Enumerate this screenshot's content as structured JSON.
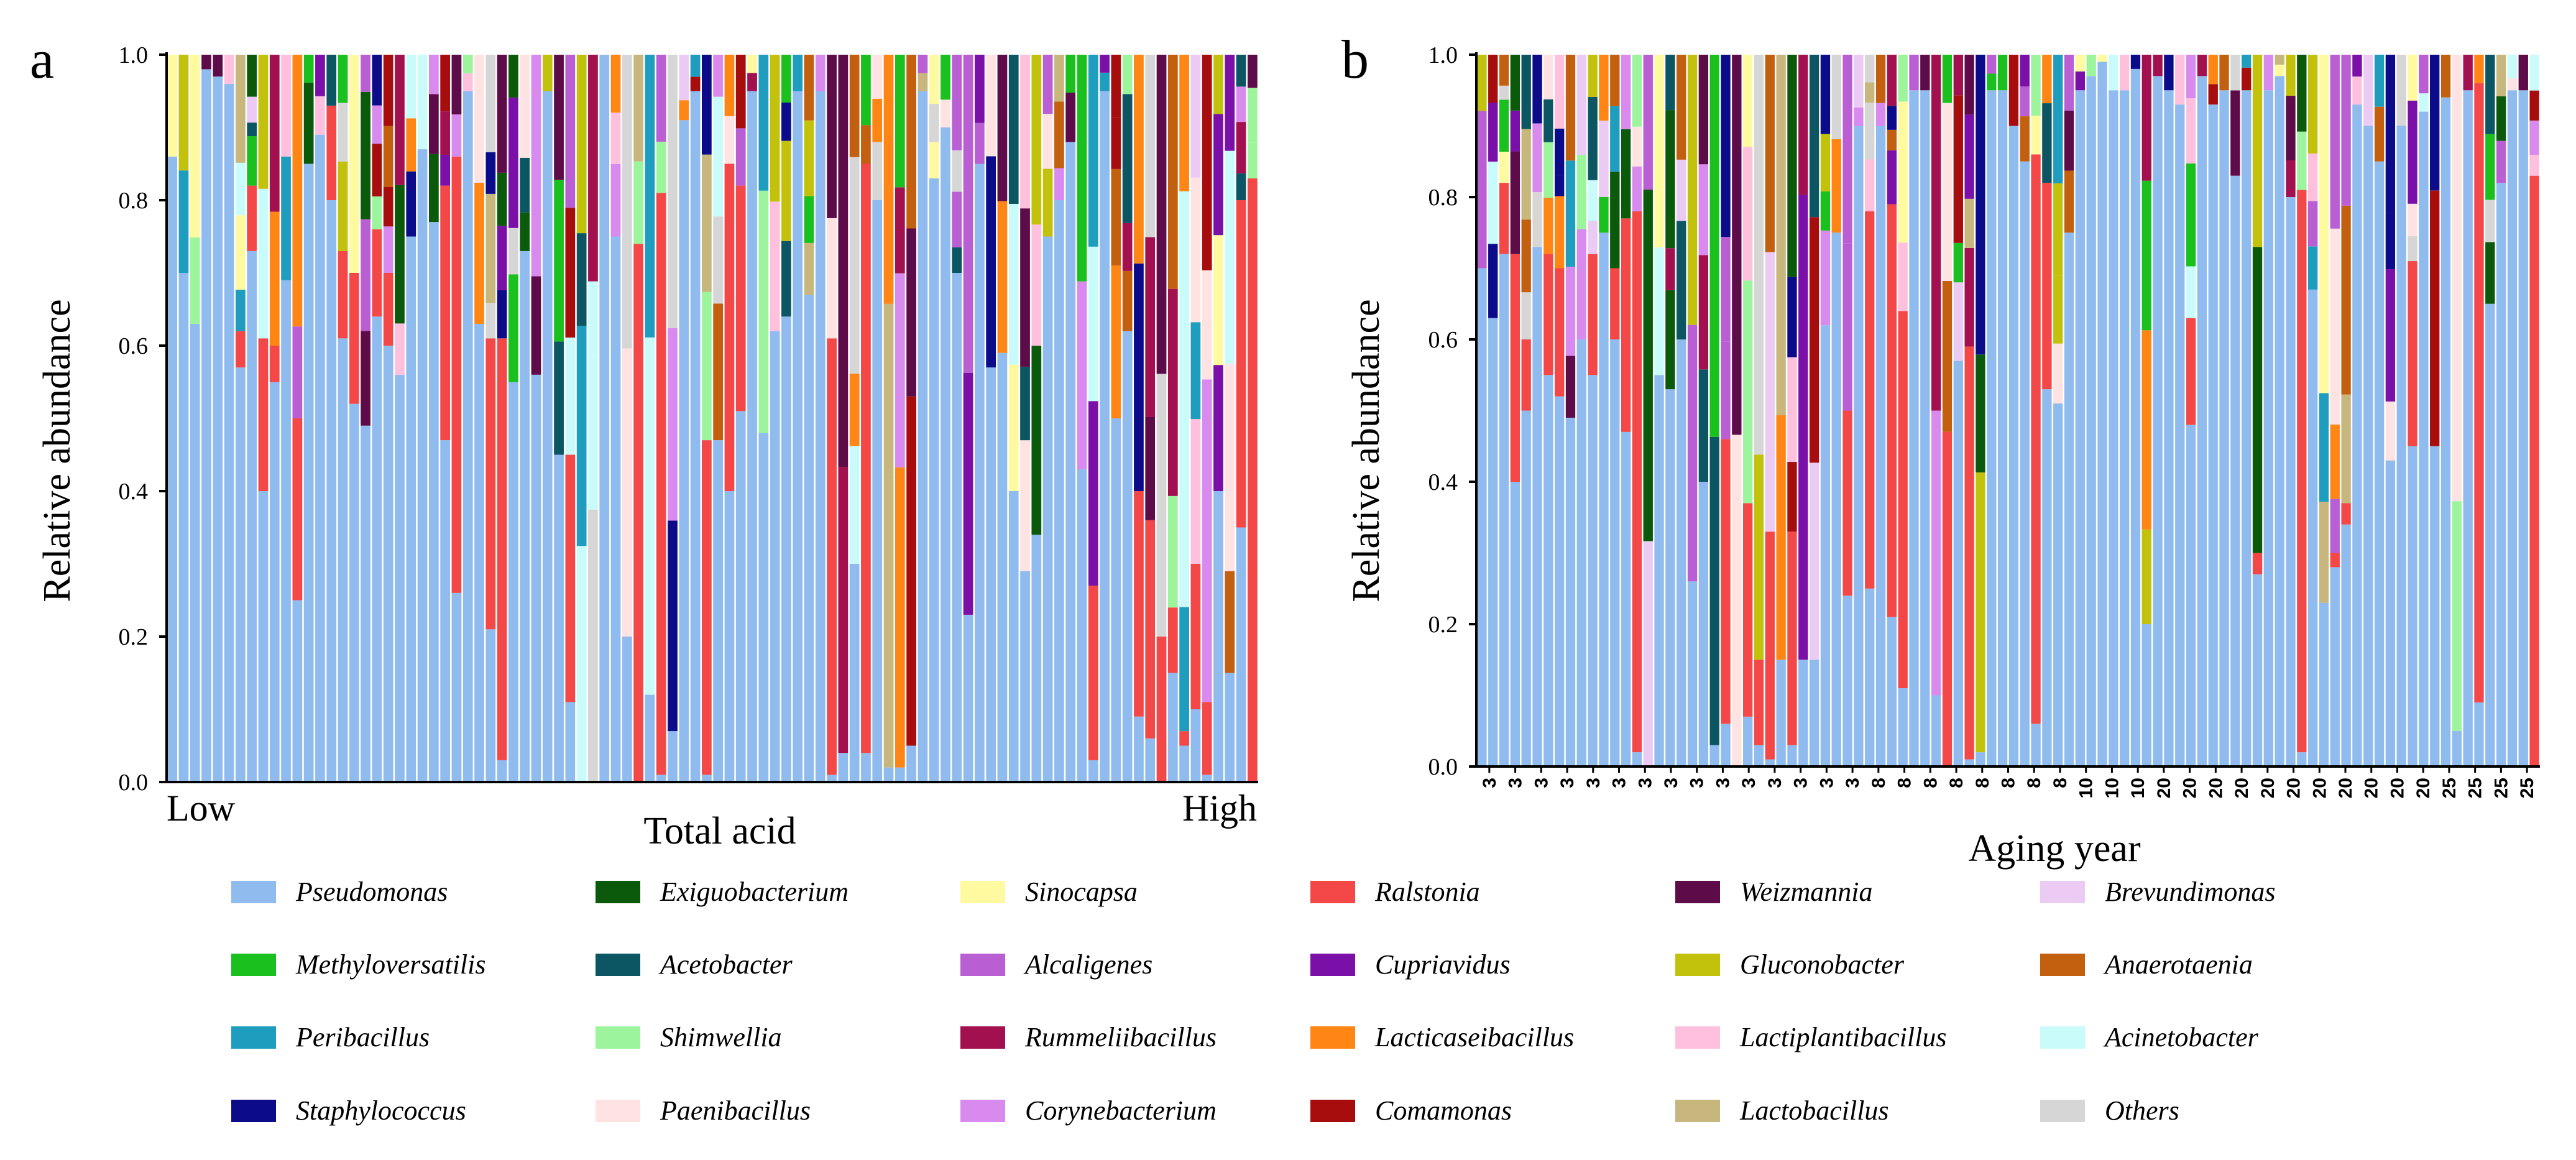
{
  "figure": {
    "panel_labels": [
      "a",
      "b"
    ]
  },
  "chart_data": [
    {
      "panel": "a",
      "type": "bar",
      "stacked": true,
      "xlabel": "Total acid",
      "ylabel": "Relative abundance",
      "x_end_labels": [
        "Low",
        "High"
      ],
      "n_samples": 96,
      "ylim": [
        0,
        1
      ],
      "y_ticks": [
        0.0,
        0.2,
        0.4,
        0.6,
        0.8,
        1.0
      ],
      "grid": false,
      "note": "Stacked composition per sample; bottom segment value is Pseudomonas share, second segment is Ralstonia share; remaining segments grouped into other genera.",
      "pseudomonas": [
        0.86,
        0.7,
        0.63,
        0.98,
        0.97,
        0.96,
        0.57,
        0.73,
        0.4,
        0.55,
        0.69,
        0.25,
        0.85,
        0.89,
        0.8,
        0.61,
        0.52,
        0.49,
        0.64,
        0.6,
        0.56,
        0.75,
        0.87,
        0.77,
        0.47,
        0.26,
        0.95,
        0.63,
        0.21,
        0.03,
        0.55,
        0.73,
        0.56,
        0.95,
        0.45,
        0.11,
        0.0,
        0.0,
        1.0,
        0.75,
        0.2,
        0.0,
        0.12,
        0.01,
        0.07,
        0.91,
        0.95,
        0.01,
        0.47,
        0.4,
        0.51,
        0.95,
        0.48,
        0.62,
        0.64,
        0.95,
        0.67,
        0.95,
        0.01,
        0.04,
        0.3,
        0.04,
        0.8,
        0.02,
        0.02,
        0.05,
        0.95,
        0.83,
        0.9,
        0.7,
        0.23,
        0.85,
        0.57,
        0.59,
        0.4,
        0.29,
        0.34,
        0.75,
        0.8,
        0.88,
        0.43,
        0.03,
        0.95,
        0.5,
        0.62,
        0.09,
        0.06,
        0.0,
        0.15,
        0.05,
        0.1,
        0.01,
        0.4,
        0.15,
        0.35,
        0.0
      ],
      "ralstonia": [
        0.0,
        0.0,
        0.0,
        0.0,
        0.0,
        0.0,
        0.05,
        0.09,
        0.21,
        0.05,
        0.0,
        0.25,
        0.0,
        0.0,
        0.13,
        0.12,
        0.18,
        0.0,
        0.12,
        0.1,
        0.0,
        0.0,
        0.0,
        0.0,
        0.35,
        0.6,
        0.0,
        0.0,
        0.4,
        0.58,
        0.0,
        0.0,
        0.0,
        0.0,
        0.0,
        0.34,
        0.0,
        0.0,
        0.0,
        0.0,
        0.0,
        0.74,
        0.0,
        0.8,
        0.0,
        0.0,
        0.0,
        0.46,
        0.0,
        0.45,
        0.31,
        0.0,
        0.0,
        0.0,
        0.0,
        0.0,
        0.0,
        0.0,
        0.6,
        0.0,
        0.0,
        0.81,
        0.0,
        0.0,
        0.0,
        0.0,
        0.0,
        0.0,
        0.0,
        0.0,
        0.0,
        0.0,
        0.0,
        0.0,
        0.0,
        0.0,
        0.0,
        0.0,
        0.0,
        0.0,
        0.0,
        0.24,
        0.0,
        0.0,
        0.0,
        0.31,
        0.3,
        0.2,
        0.09,
        0.02,
        0.2,
        0.1,
        0.0,
        0.0,
        0.45,
        0.83
      ]
    },
    {
      "panel": "b",
      "type": "bar",
      "stacked": true,
      "xlabel": "Aging year",
      "ylabel": "Relative abundance",
      "x_tick_labels": [
        "3",
        "3",
        "3",
        "3",
        "3",
        "3",
        "3",
        "3",
        "3",
        "3",
        "3",
        "3",
        "3",
        "3",
        "3",
        "8",
        "8",
        "8",
        "8",
        "8",
        "8",
        "8",
        "8",
        "10",
        "10",
        "10",
        "20",
        "20",
        "20",
        "20",
        "20",
        "20",
        "20",
        "20",
        "20",
        "20",
        "20",
        "25",
        "25",
        "25",
        "25"
      ],
      "n_samples": 96,
      "ylim": [
        0,
        1
      ],
      "y_ticks": [
        0.0,
        0.2,
        0.4,
        0.6,
        0.8,
        1.0
      ],
      "grid": false,
      "note": "Samples ordered by aging year (3, 8, 10, 20, 25); bottom segment is Pseudomonas share.",
      "pseudomonas": [
        0.7,
        0.63,
        0.72,
        0.4,
        0.5,
        0.73,
        0.55,
        0.52,
        0.49,
        0.6,
        0.55,
        0.75,
        0.6,
        0.47,
        0.02,
        0.0,
        0.55,
        0.53,
        0.6,
        0.26,
        0.4,
        0.03,
        0.06,
        0.0,
        0.07,
        0.03,
        0.01,
        0.15,
        0.03,
        0.15,
        0.15,
        0.62,
        0.75,
        0.24,
        0.9,
        0.25,
        0.9,
        0.21,
        0.11,
        0.95,
        0.95,
        0.1,
        0.0,
        0.57,
        0.01,
        0.02,
        0.95,
        0.95,
        0.9,
        0.85,
        0.06,
        0.53,
        0.51,
        0.75,
        0.95,
        0.97,
        0.99,
        0.95,
        0.95,
        0.98,
        0.2,
        0.97,
        0.95,
        0.93,
        0.48,
        0.97,
        0.93,
        0.95,
        0.83,
        0.95,
        0.27,
        0.95,
        0.97,
        0.8,
        0.02,
        0.67,
        0.23,
        0.28,
        0.34,
        0.93,
        0.9,
        0.85,
        0.43,
        0.9,
        0.45,
        0.92,
        0.45,
        0.94,
        0.05,
        0.95,
        0.09,
        0.65,
        0.82,
        0.95,
        0.95,
        0.0
      ],
      "ralstonia": [
        0.0,
        0.0,
        0.1,
        0.32,
        0.1,
        0.0,
        0.17,
        0.18,
        0.0,
        0.0,
        0.17,
        0.0,
        0.1,
        0.3,
        0.76,
        0.0,
        0.0,
        0.0,
        0.0,
        0.0,
        0.0,
        0.0,
        0.4,
        0.0,
        0.3,
        0.12,
        0.32,
        0.0,
        0.3,
        0.0,
        0.0,
        0.0,
        0.0,
        0.26,
        0.0,
        0.53,
        0.0,
        0.58,
        0.53,
        0.0,
        0.0,
        0.0,
        0.47,
        0.0,
        0.58,
        0.0,
        0.0,
        0.0,
        0.0,
        0.0,
        0.8,
        0.29,
        0.0,
        0.0,
        0.0,
        0.0,
        0.0,
        0.0,
        0.0,
        0.0,
        0.0,
        0.0,
        0.0,
        0.0,
        0.15,
        0.0,
        0.0,
        0.0,
        0.0,
        0.0,
        0.03,
        0.0,
        0.0,
        0.0,
        0.79,
        0.0,
        0.0,
        0.02,
        0.03,
        0.0,
        0.0,
        0.0,
        0.0,
        0.0,
        0.26,
        0.0,
        0.0,
        0.0,
        0.0,
        0.0,
        0.87,
        0.0,
        0.0,
        0.0,
        0.0,
        0.83
      ]
    }
  ],
  "legend": {
    "columns": 6,
    "items": [
      {
        "name": "Pseudomonas",
        "color": "#8fbbef"
      },
      {
        "name": "Methyloversatilis",
        "color": "#19c01e"
      },
      {
        "name": "Peribacillus",
        "color": "#1f9dbe"
      },
      {
        "name": "Staphylococcus",
        "color": "#0c0c8a"
      },
      {
        "name": "Exiguobacterium",
        "color": "#0b5a0b"
      },
      {
        "name": "Acetobacter",
        "color": "#0c5563"
      },
      {
        "name": "Shimwellia",
        "color": "#9cf59c"
      },
      {
        "name": "Paenibacillus",
        "color": "#ffe2e2"
      },
      {
        "name": "Sinocapsa",
        "color": "#fffaa0"
      },
      {
        "name": "Alcaligenes",
        "color": "#b95ed3"
      },
      {
        "name": "Rummeliibacillus",
        "color": "#a3104f"
      },
      {
        "name": "Corynebacterium",
        "color": "#d98aef"
      },
      {
        "name": "Ralstonia",
        "color": "#f44848"
      },
      {
        "name": "Cupriavidus",
        "color": "#7a10a8"
      },
      {
        "name": "Lacticaseibacillus",
        "color": "#ff8515"
      },
      {
        "name": "Comamonas",
        "color": "#a70d0d"
      },
      {
        "name": "Weizmannia",
        "color": "#5e0b4a"
      },
      {
        "name": "Gluconobacter",
        "color": "#c2c20d"
      },
      {
        "name": "Lactiplantibacillus",
        "color": "#ffc0de"
      },
      {
        "name": "Lactobacillus",
        "color": "#c7b77d"
      },
      {
        "name": "Brevundimonas",
        "color": "#ebcaf3"
      },
      {
        "name": "Anaerotaenia",
        "color": "#c2600f"
      },
      {
        "name": "Acinetobacter",
        "color": "#c9fbfb"
      },
      {
        "name": "Others",
        "color": "#d6d6d6"
      }
    ]
  }
}
